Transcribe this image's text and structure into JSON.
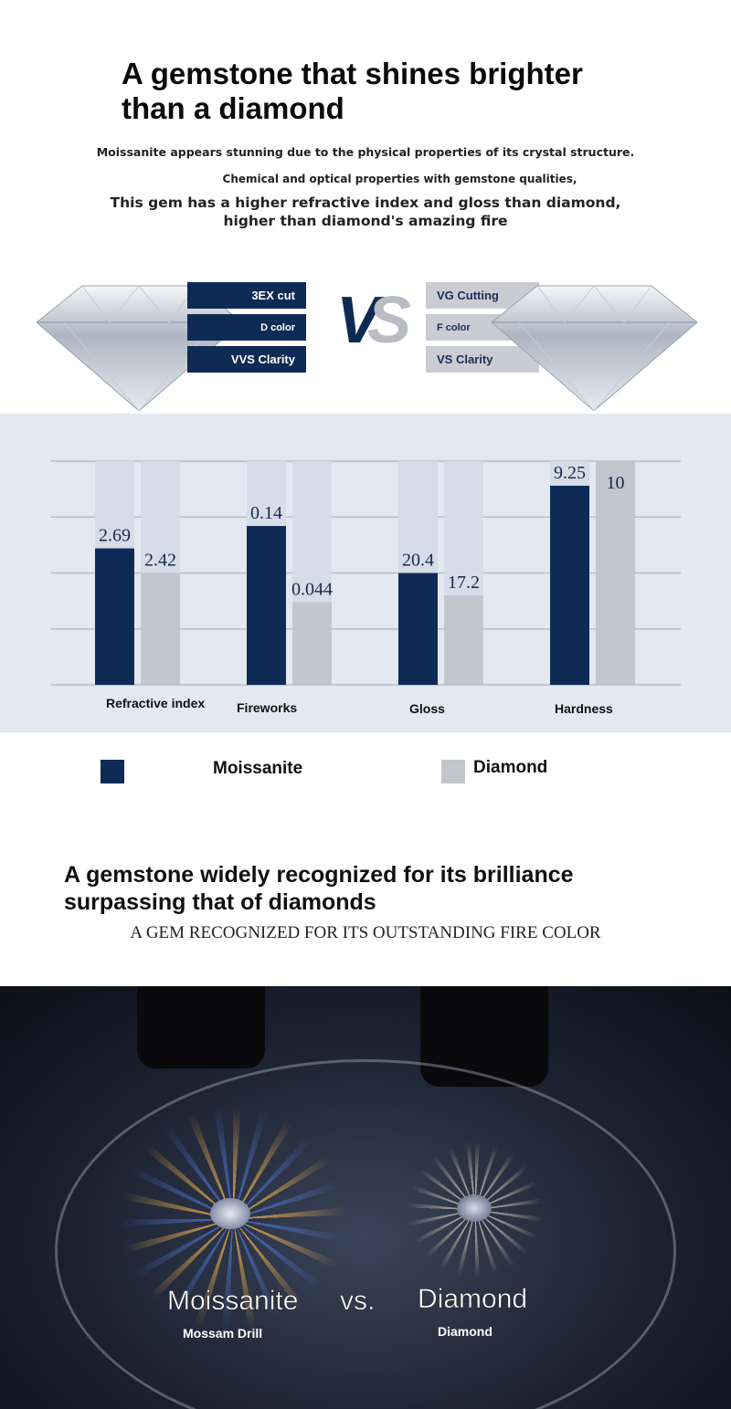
{
  "header": {
    "title_lines": [
      "A gemstone that shines brighter",
      "than a diamond"
    ],
    "subtitle1": "Moissanite appears stunning due to the physical properties of its crystal structure.",
    "subtitle2": "Chemical and optical properties with gemstone qualities,",
    "subtitle3": "This gem has a higher refractive index and gloss than diamond, higher than diamond's amazing fire"
  },
  "comparison": {
    "left_labels": [
      "3EX cut",
      "D color",
      "VVS Clarity"
    ],
    "vs": "VS",
    "right_labels": [
      "VG Cutting",
      "F color",
      "VS Clarity"
    ]
  },
  "colors": {
    "moissanite": "#0e2b55",
    "diamond": "#c3c6cc",
    "track": "#d6dce8",
    "chart_bg": "#e4e8f1"
  },
  "chart_data": {
    "type": "bar",
    "grid": true,
    "legend_placement": "bottom",
    "categories": [
      "Refractive index",
      "Fireworks",
      "Gloss",
      "Hardness"
    ],
    "series": [
      {
        "name": "Moissanite",
        "values": [
          2.69,
          0.14,
          20.4,
          9.25
        ],
        "fill_levels": [
          0.61,
          0.71,
          0.5,
          0.89
        ]
      },
      {
        "name": "Diamond",
        "values": [
          2.42,
          0.044,
          17.2,
          10
        ],
        "fill_levels": [
          0.5,
          0.37,
          0.4,
          1.0
        ]
      }
    ]
  },
  "legend": {
    "moissanite": "Moissanite",
    "diamond": "Diamond"
  },
  "section2": {
    "heading_lines": [
      "A gemstone widely recognized for its brilliance",
      "surpassing that of diamonds"
    ],
    "subheading": "A GEM RECOGNIZED FOR ITS OUTSTANDING FIRE COLOR"
  },
  "photo": {
    "left_title": "Moissanite",
    "vs": "vs.",
    "right_title": "Diamond",
    "left_caption": "Mossam Drill",
    "right_caption": "Diamond"
  }
}
